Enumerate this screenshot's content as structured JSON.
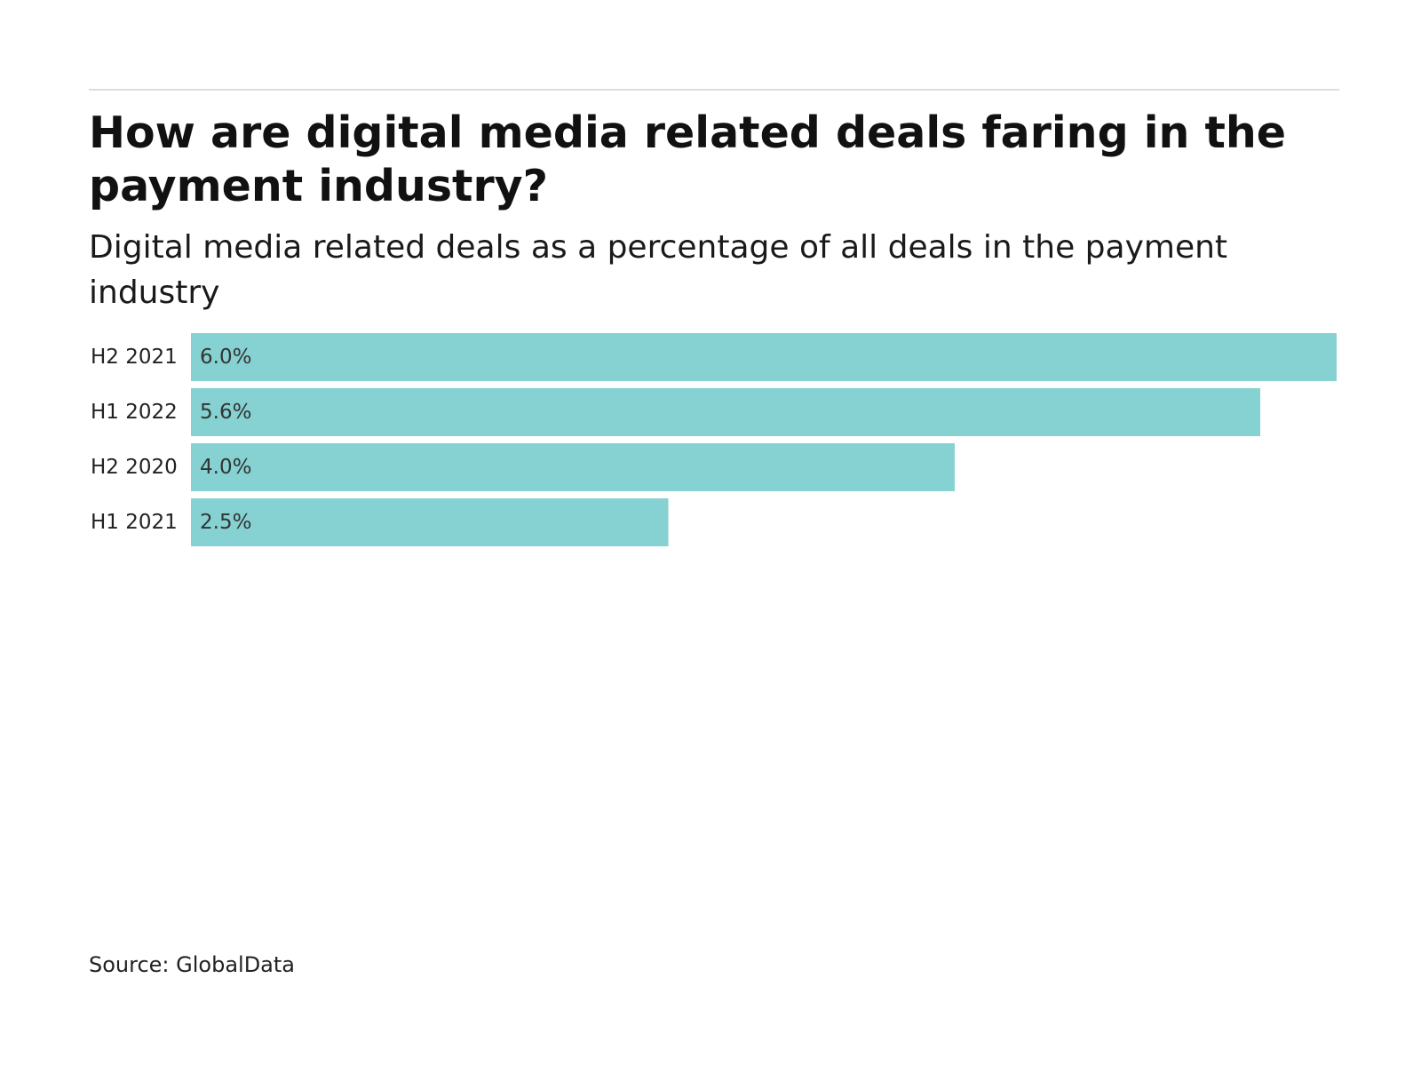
{
  "chart_data": {
    "type": "bar",
    "orientation": "horizontal",
    "title": "How are digital media related deals faring in the payment industry?",
    "subtitle": "Digital media related deals as a percentage of all deals in the payment industry",
    "categories": [
      "H2 2021",
      "H1 2022",
      "H2 2020",
      "H1 2021"
    ],
    "values": [
      6.0,
      5.6,
      4.0,
      2.5
    ],
    "value_labels": [
      "6.0%",
      "5.6%",
      "4.0%",
      "2.5%"
    ],
    "xlim": [
      0,
      6.0
    ],
    "xlabel": "",
    "ylabel": "",
    "grid": false,
    "legend": "none",
    "source": "Source: GlobalData"
  },
  "colors": {
    "bar": "#86d1d1",
    "rule": "#dddddd",
    "text": "#111111"
  }
}
